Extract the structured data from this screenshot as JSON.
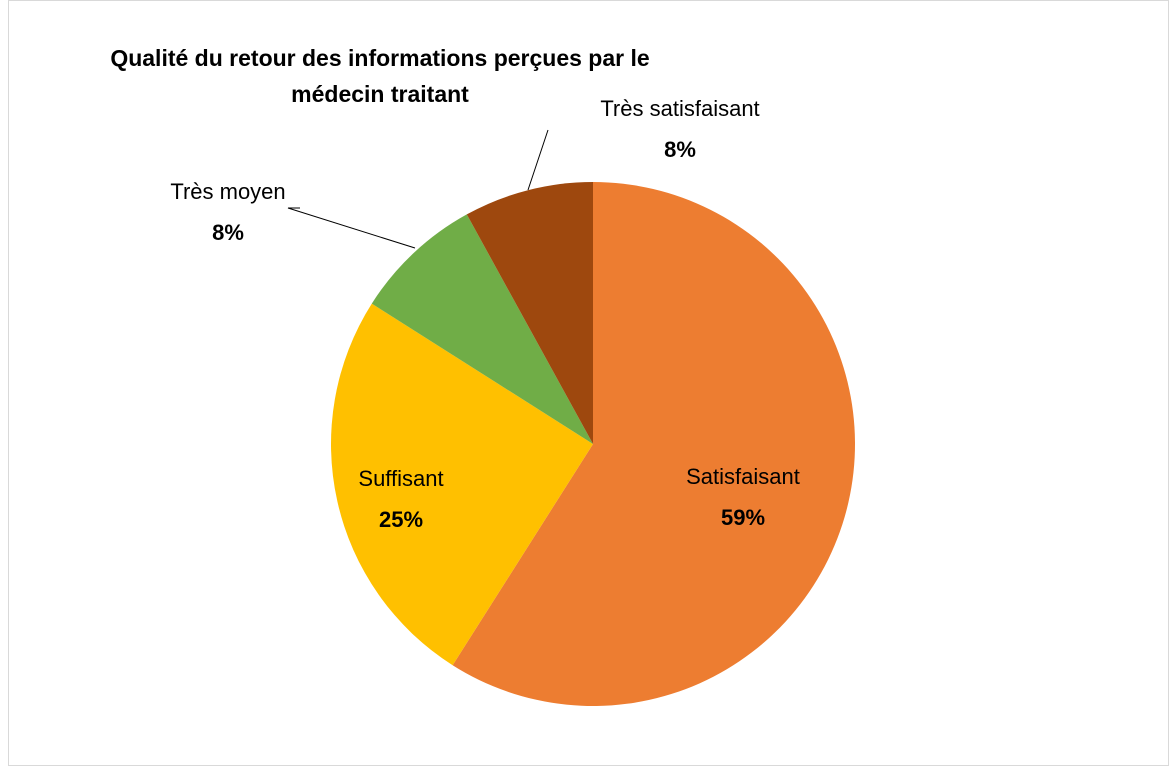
{
  "chart_data": {
    "type": "pie",
    "title": "Qualité du retour des informations perçues par le médecin traitant",
    "categories": [
      "Satisfaisant",
      "Suffisant",
      "Très moyen",
      "Très satisfaisant"
    ],
    "values": [
      59,
      25,
      8,
      8
    ],
    "value_labels": [
      "59%",
      "25%",
      "8%",
      "8%"
    ],
    "colors": [
      "#ED7D31",
      "#FFC000",
      "#70AD47",
      "#9E480E"
    ]
  }
}
